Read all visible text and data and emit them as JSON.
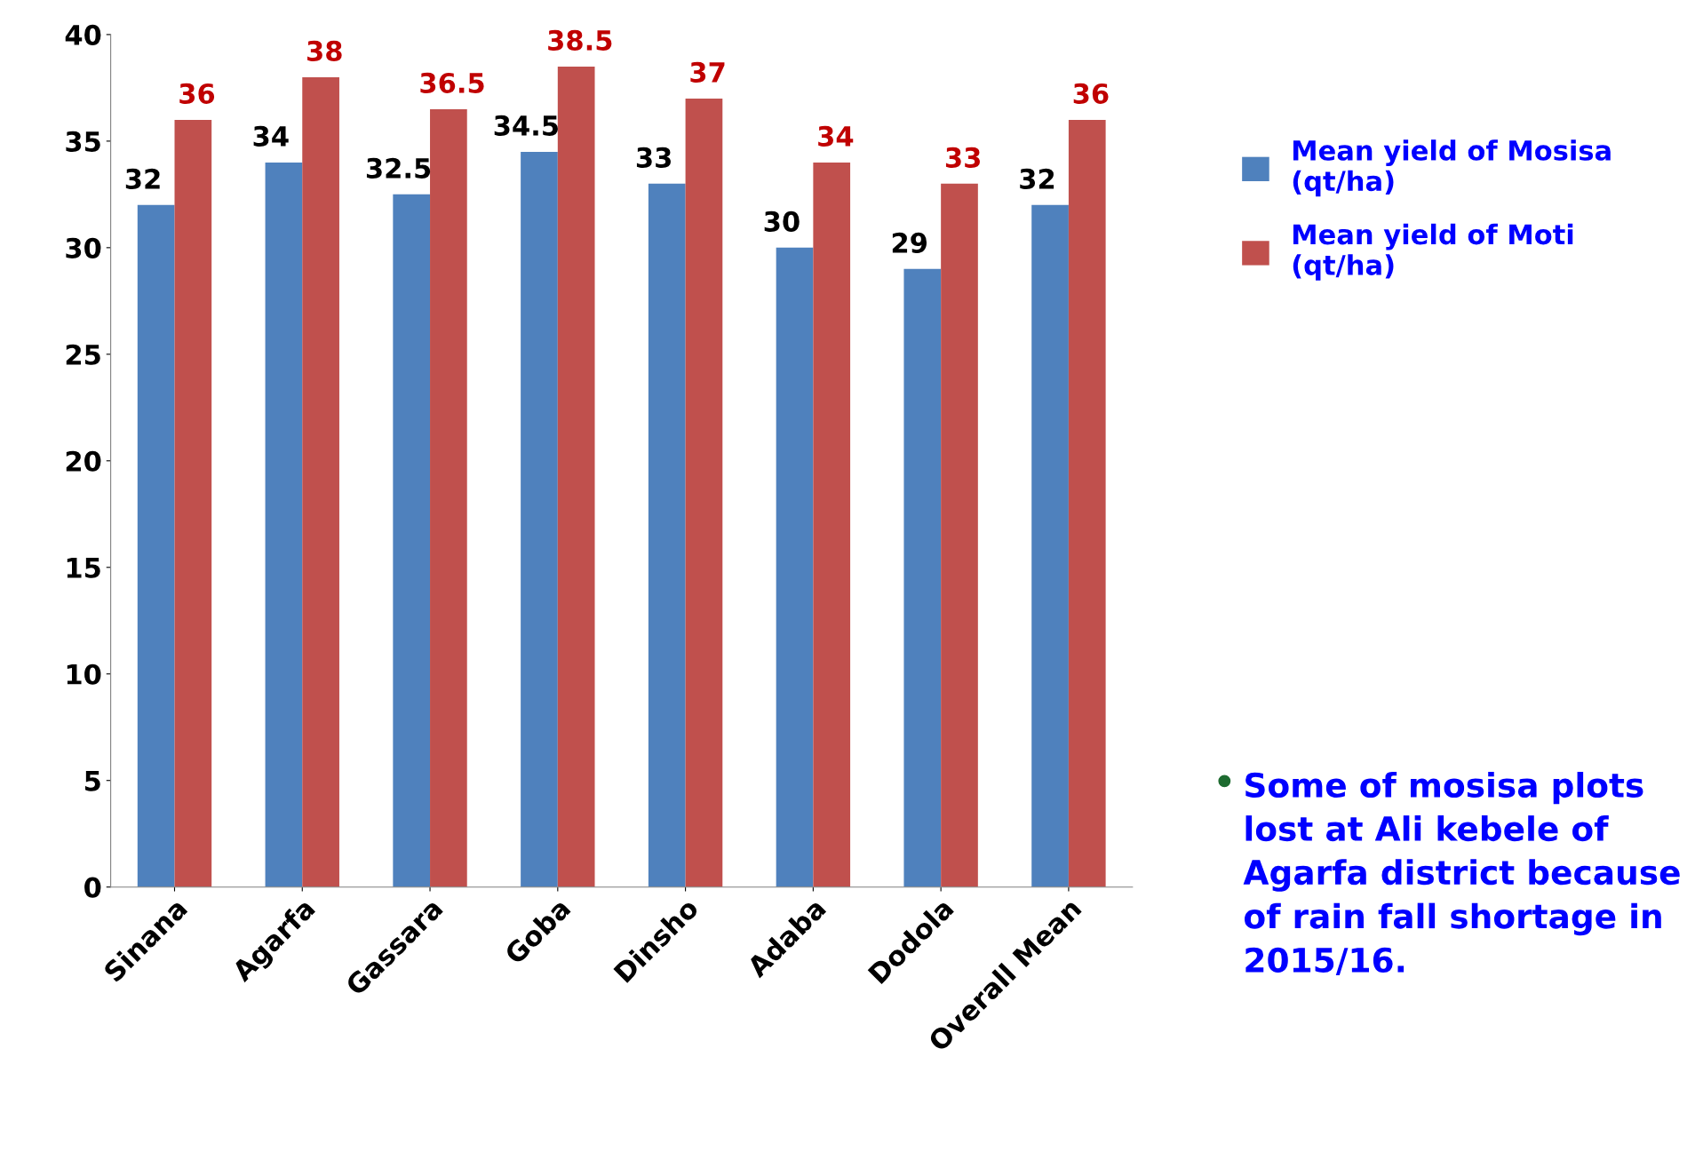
{
  "chart_data": {
    "type": "bar",
    "categories": [
      "Sinana",
      "Agarfa",
      "Gassara",
      "Goba",
      "Dinsho",
      "Adaba",
      "Dodola",
      "Overall Mean"
    ],
    "series": [
      {
        "name": "Mean yield of Mosisa (qt/ha)",
        "color": "#4f81bd",
        "values": [
          32,
          34,
          32.5,
          34.5,
          33,
          30,
          29,
          32
        ]
      },
      {
        "name": "Mean yield of Moti (qt/ha)",
        "color": "#c0504d",
        "values": [
          36,
          38,
          36.5,
          38.5,
          37,
          34,
          33,
          36
        ]
      }
    ],
    "ylim": [
      0,
      40
    ],
    "yticks": [
      0,
      5,
      10,
      15,
      20,
      25,
      30,
      35,
      40
    ],
    "grid": false,
    "legend": "top right",
    "data_labels": true,
    "annotations": [
      "Some of mosisa plots lost at Ali kebele of Agarfa district because of rain fall shortage in 2015/16."
    ]
  }
}
